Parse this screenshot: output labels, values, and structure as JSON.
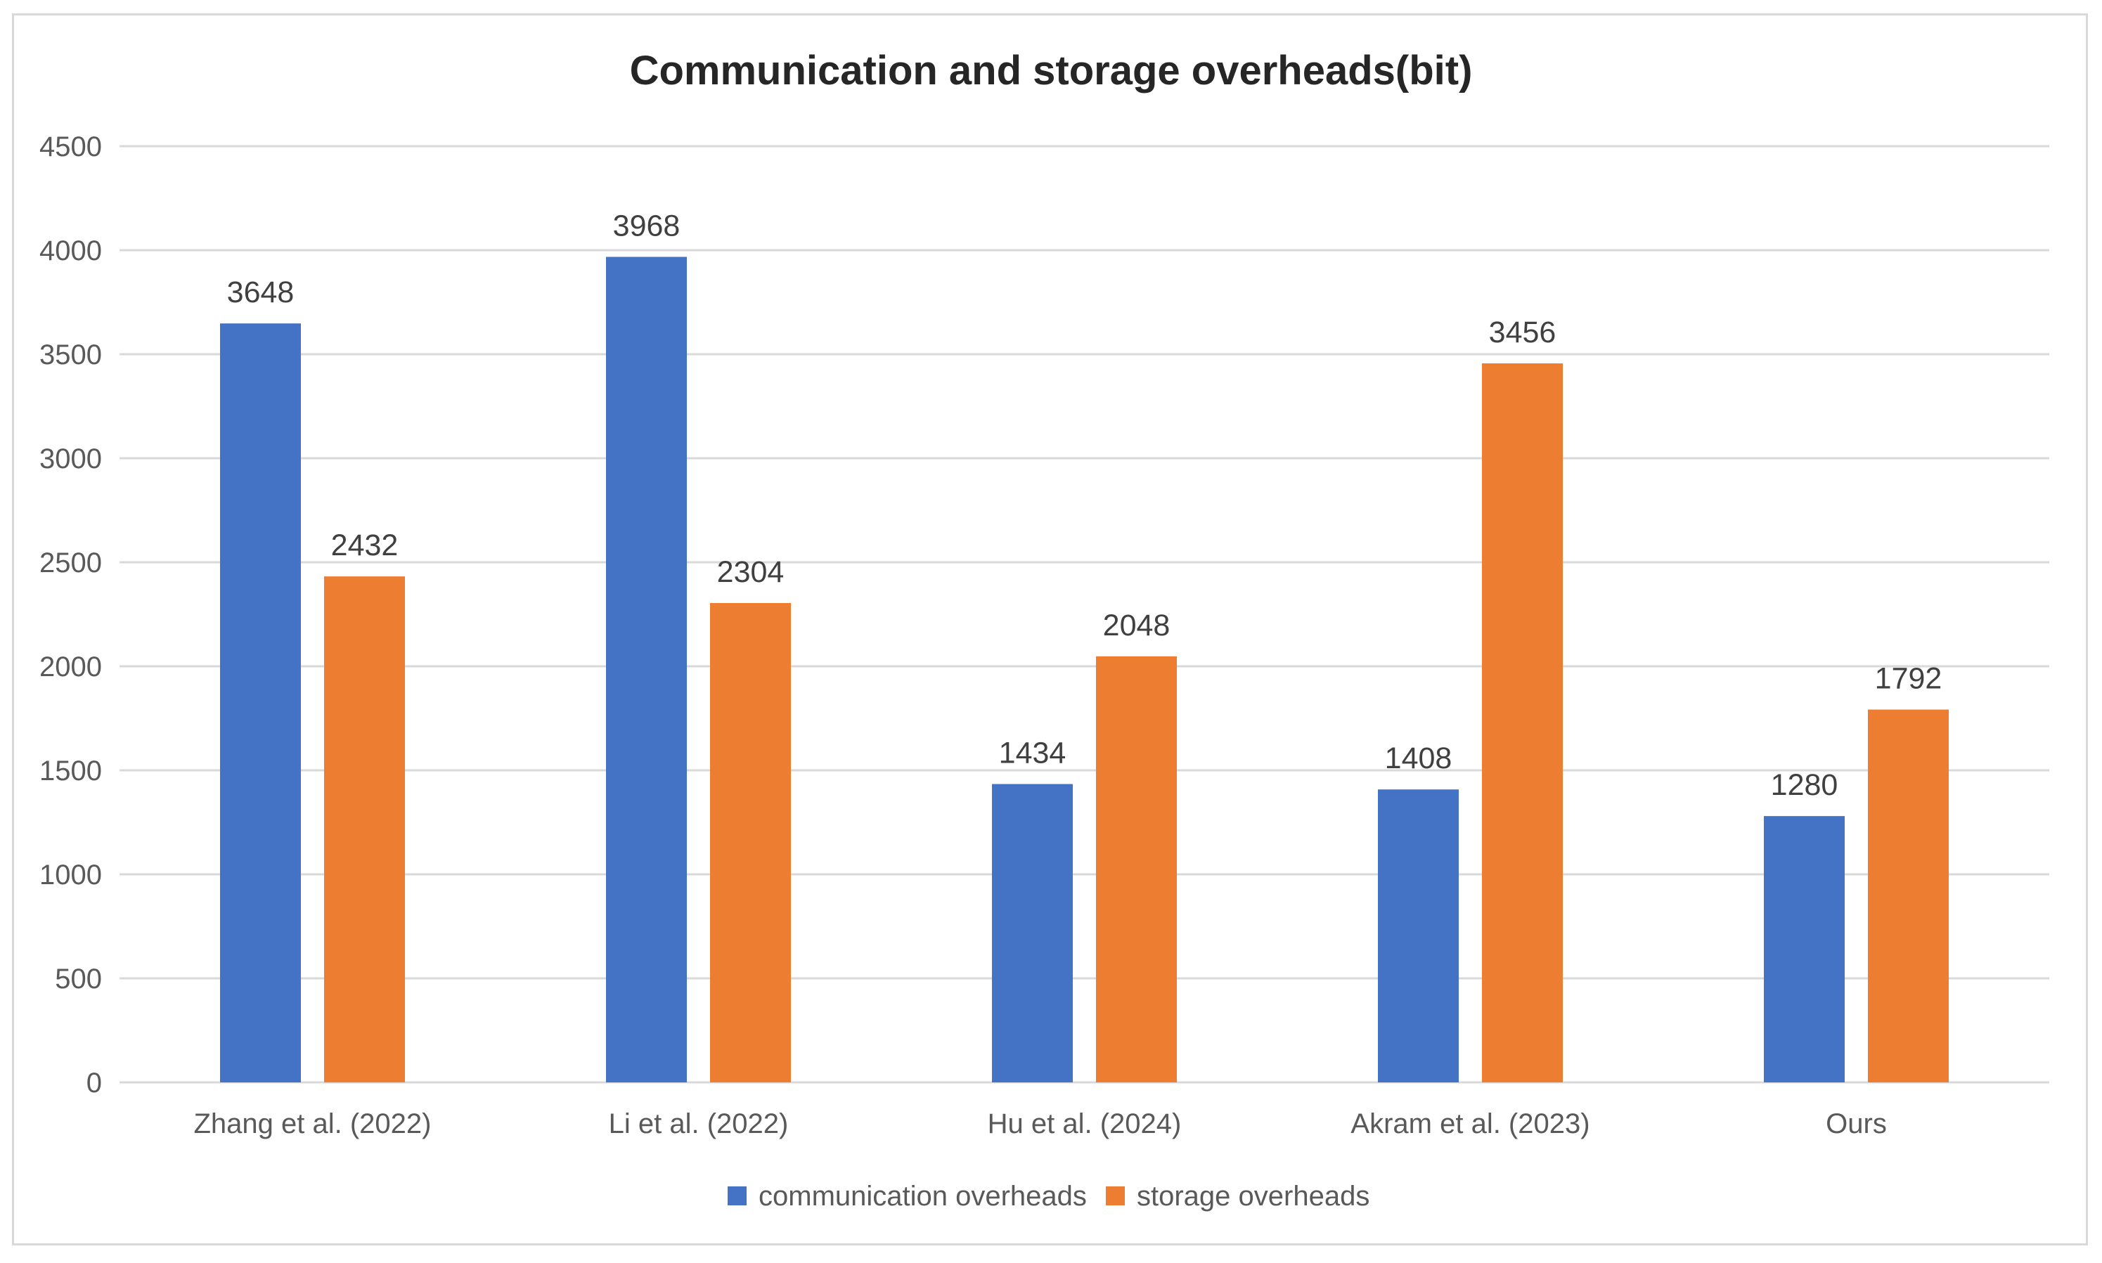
{
  "chart_data": {
    "type": "bar",
    "title": "Communication and storage overheads(bit)",
    "xlabel": "",
    "ylabel": "",
    "ylim": [
      0,
      4500
    ],
    "yticks": [
      0,
      500,
      1000,
      1500,
      2000,
      2500,
      3000,
      3500,
      4000,
      4500
    ],
    "grid": true,
    "legend_position": "bottom",
    "categories": [
      "Zhang et al. (2022)",
      "Li et al. (2022)",
      "Hu et al. (2024)",
      "Akram et al. (2023)",
      "Ours"
    ],
    "series": [
      {
        "name": "communication overheads",
        "color": "#4472C4",
        "values": [
          3648,
          3968,
          1434,
          1408,
          1280
        ]
      },
      {
        "name": "storage overheads",
        "color": "#ED7D31",
        "values": [
          2432,
          2304,
          2048,
          3456,
          1792
        ]
      }
    ]
  }
}
